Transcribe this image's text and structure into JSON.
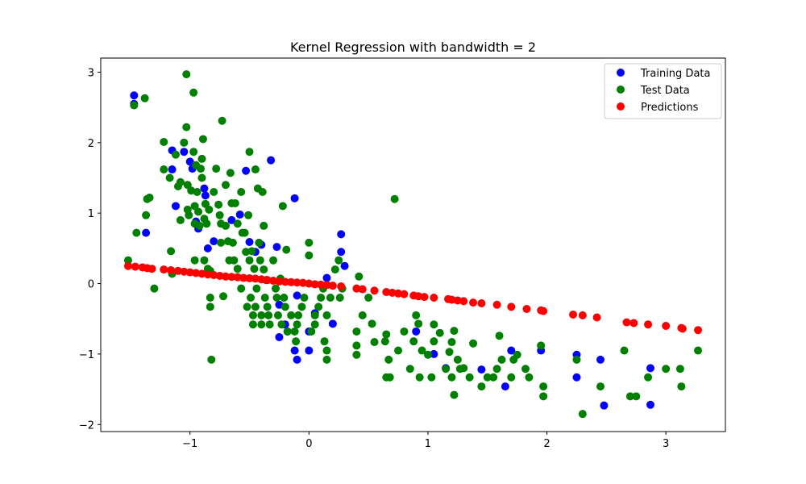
{
  "chart_data": {
    "type": "scatter",
    "title": "Kernel Regression with bandwidth = 2",
    "xlabel": "",
    "ylabel": "",
    "xlim": [
      -1.75,
      3.5
    ],
    "ylim": [
      -2.1,
      3.2
    ],
    "x_ticks": [
      -1,
      0,
      1,
      2,
      3
    ],
    "x_tick_labels": [
      "−1",
      "0",
      "1",
      "2",
      "3"
    ],
    "y_ticks": [
      -2,
      -1,
      0,
      1,
      2,
      3
    ],
    "y_tick_labels": [
      "−2",
      "−1",
      "0",
      "1",
      "2",
      "3"
    ],
    "grid": false,
    "legend_position": "top-right",
    "series": [
      {
        "name": "Training Data",
        "color": "#0000ff",
        "points": [
          [
            -1.47,
            2.67
          ],
          [
            -1.47,
            2.55
          ],
          [
            -1.37,
            0.72
          ],
          [
            -1.15,
            1.89
          ],
          [
            -1.15,
            1.62
          ],
          [
            -1.12,
            1.1
          ],
          [
            -1.05,
            1.87
          ],
          [
            -1.0,
            1.73
          ],
          [
            -0.98,
            1.63
          ],
          [
            -0.95,
            0.88
          ],
          [
            -0.93,
            0.78
          ],
          [
            -0.88,
            1.35
          ],
          [
            -0.87,
            1.25
          ],
          [
            -0.85,
            0.5
          ],
          [
            -0.8,
            0.6
          ],
          [
            -0.65,
            0.9
          ],
          [
            -0.58,
            0.98
          ],
          [
            -0.53,
            1.6
          ],
          [
            -0.5,
            0.59
          ],
          [
            -0.45,
            0.45
          ],
          [
            -0.4,
            0.55
          ],
          [
            -0.32,
            1.75
          ],
          [
            -0.27,
            0.52
          ],
          [
            -0.25,
            -0.3
          ],
          [
            -0.25,
            -0.76
          ],
          [
            -0.2,
            -0.58
          ],
          [
            -0.18,
            -0.68
          ],
          [
            -0.12,
            -0.95
          ],
          [
            -0.1,
            -1.08
          ],
          [
            -0.12,
            1.21
          ],
          [
            -0.1,
            -0.17
          ],
          [
            0.0,
            -0.95
          ],
          [
            0.0,
            -0.68
          ],
          [
            0.05,
            -0.42
          ],
          [
            0.15,
            0.08
          ],
          [
            0.2,
            -0.57
          ],
          [
            0.27,
            0.7
          ],
          [
            0.27,
            0.45
          ],
          [
            0.3,
            0.25
          ],
          [
            0.9,
            -0.68
          ],
          [
            1.05,
            -1.0
          ],
          [
            1.15,
            -1.2
          ],
          [
            1.45,
            -1.22
          ],
          [
            1.65,
            -1.46
          ],
          [
            1.7,
            -0.95
          ],
          [
            1.95,
            -0.95
          ],
          [
            2.25,
            -1.01
          ],
          [
            2.25,
            -1.33
          ],
          [
            2.45,
            -1.08
          ],
          [
            2.48,
            -1.73
          ],
          [
            2.87,
            -1.2
          ],
          [
            2.87,
            -1.72
          ]
        ]
      },
      {
        "name": "Test Data",
        "color": "#008000",
        "points": [
          [
            -1.52,
            0.33
          ],
          [
            -1.47,
            2.53
          ],
          [
            -1.45,
            0.72
          ],
          [
            -1.38,
            2.63
          ],
          [
            -1.37,
            0.97
          ],
          [
            -1.36,
            1.2
          ],
          [
            -1.34,
            1.22
          ],
          [
            -1.3,
            -0.07
          ],
          [
            -1.22,
            2.01
          ],
          [
            -1.22,
            1.62
          ],
          [
            -1.17,
            1.5
          ],
          [
            -1.16,
            0.46
          ],
          [
            -1.15,
            0.14
          ],
          [
            -1.12,
            1.83
          ],
          [
            -1.1,
            1.38
          ],
          [
            -1.08,
            1.44
          ],
          [
            -1.08,
            0.9
          ],
          [
            -1.05,
            2.0
          ],
          [
            -1.03,
            2.97
          ],
          [
            -1.03,
            2.22
          ],
          [
            -1.02,
            1.4
          ],
          [
            -1.02,
            1.05
          ],
          [
            -1.01,
            0.97
          ],
          [
            -0.99,
            1.32
          ],
          [
            -0.97,
            2.71
          ],
          [
            -0.97,
            1.87
          ],
          [
            -0.96,
            1.1
          ],
          [
            -0.96,
            0.85
          ],
          [
            -0.96,
            0.33
          ],
          [
            -0.95,
            1.68
          ],
          [
            -0.94,
            1.3
          ],
          [
            -0.93,
            1.02
          ],
          [
            -0.92,
            0.82
          ],
          [
            -0.91,
            1.63
          ],
          [
            -0.9,
            1.77
          ],
          [
            -0.9,
            1.5
          ],
          [
            -0.89,
            2.05
          ],
          [
            -0.88,
            0.92
          ],
          [
            -0.88,
            0.33
          ],
          [
            -0.87,
            1.13
          ],
          [
            -0.86,
            0.85
          ],
          [
            -0.85,
            0.21
          ],
          [
            -0.84,
            1.05
          ],
          [
            -0.83,
            0.18
          ],
          [
            -0.83,
            -0.2
          ],
          [
            -0.83,
            -0.33
          ],
          [
            -0.82,
            -1.08
          ],
          [
            -0.8,
            1.3
          ],
          [
            -0.78,
            1.63
          ],
          [
            -0.76,
            1.12
          ],
          [
            -0.75,
            0.97
          ],
          [
            -0.74,
            0.85
          ],
          [
            -0.74,
            0.58
          ],
          [
            -0.73,
            2.31
          ],
          [
            -0.72,
            -0.18
          ],
          [
            -0.7,
            1.4
          ],
          [
            -0.7,
            0.82
          ],
          [
            -0.68,
            0.6
          ],
          [
            -0.67,
            0.33
          ],
          [
            -0.66,
            1.57
          ],
          [
            -0.65,
            1.14
          ],
          [
            -0.64,
            0.58
          ],
          [
            -0.63,
            0.33
          ],
          [
            -0.62,
            1.14
          ],
          [
            -0.6,
            0.85
          ],
          [
            -0.6,
            0.21
          ],
          [
            -0.57,
            1.3
          ],
          [
            -0.57,
            -0.07
          ],
          [
            -0.56,
            0.72
          ],
          [
            -0.54,
            0.72
          ],
          [
            -0.53,
            0.45
          ],
          [
            -0.52,
            -0.33
          ],
          [
            -0.51,
            0.97
          ],
          [
            -0.5,
            1.87
          ],
          [
            -0.5,
            0.33
          ],
          [
            -0.49,
            -0.2
          ],
          [
            -0.48,
            0.46
          ],
          [
            -0.47,
            -0.45
          ],
          [
            -0.47,
            -0.58
          ],
          [
            -0.46,
            0.21
          ],
          [
            -0.45,
            1.62
          ],
          [
            -0.45,
            -0.33
          ],
          [
            -0.44,
            -0.07
          ],
          [
            -0.43,
            1.35
          ],
          [
            -0.42,
            0.58
          ],
          [
            -0.41,
            0.33
          ],
          [
            -0.4,
            -0.45
          ],
          [
            -0.4,
            -0.58
          ],
          [
            -0.39,
            1.3
          ],
          [
            -0.38,
            0.82
          ],
          [
            -0.38,
            0.2
          ],
          [
            -0.37,
            -0.2
          ],
          [
            -0.36,
            0.05
          ],
          [
            -0.35,
            -0.33
          ],
          [
            -0.34,
            -0.45
          ],
          [
            -0.33,
            -0.58
          ],
          [
            -0.3,
            0.33
          ],
          [
            -0.28,
            -0.07
          ],
          [
            -0.27,
            -0.2
          ],
          [
            -0.26,
            -0.45
          ],
          [
            -0.24,
            0.07
          ],
          [
            -0.23,
            -0.58
          ],
          [
            -0.22,
            1.1
          ],
          [
            -0.21,
            -0.2
          ],
          [
            -0.2,
            -0.33
          ],
          [
            -0.19,
            0.48
          ],
          [
            -0.18,
            -0.68
          ],
          [
            -0.15,
            -0.45
          ],
          [
            -0.12,
            -0.68
          ],
          [
            -0.11,
            -0.82
          ],
          [
            -0.1,
            -0.58
          ],
          [
            -0.09,
            -0.45
          ],
          [
            -0.06,
            -0.33
          ],
          [
            -0.04,
            -0.2
          ],
          [
            0.0,
            0.58
          ],
          [
            0.0,
            0.4
          ],
          [
            0.02,
            -0.68
          ],
          [
            0.05,
            -0.58
          ],
          [
            0.05,
            -0.45
          ],
          [
            0.08,
            -0.33
          ],
          [
            0.1,
            -0.2
          ],
          [
            0.12,
            -0.07
          ],
          [
            0.13,
            -0.82
          ],
          [
            0.15,
            -0.95
          ],
          [
            0.15,
            -1.08
          ],
          [
            0.15,
            -0.45
          ],
          [
            0.18,
            -0.2
          ],
          [
            0.22,
            0.2
          ],
          [
            0.25,
            0.33
          ],
          [
            0.26,
            -0.2
          ],
          [
            0.28,
            -0.07
          ],
          [
            0.4,
            -0.68
          ],
          [
            0.4,
            -0.88
          ],
          [
            0.4,
            -1.01
          ],
          [
            0.42,
            0.1
          ],
          [
            0.45,
            -0.45
          ],
          [
            0.5,
            -0.2
          ],
          [
            0.53,
            -0.57
          ],
          [
            0.55,
            -0.83
          ],
          [
            0.64,
            -0.82
          ],
          [
            0.65,
            -0.72
          ],
          [
            0.65,
            -1.33
          ],
          [
            0.67,
            -1.08
          ],
          [
            0.68,
            -1.33
          ],
          [
            0.72,
            1.2
          ],
          [
            0.75,
            -0.95
          ],
          [
            0.8,
            -0.68
          ],
          [
            0.85,
            -1.21
          ],
          [
            0.88,
            -0.82
          ],
          [
            0.9,
            -0.45
          ],
          [
            0.92,
            -0.57
          ],
          [
            0.93,
            -1.33
          ],
          [
            0.95,
            -0.95
          ],
          [
            1.0,
            -1.01
          ],
          [
            1.03,
            -1.33
          ],
          [
            1.05,
            -0.82
          ],
          [
            1.05,
            -0.58
          ],
          [
            1.1,
            -0.7
          ],
          [
            1.15,
            -1.21
          ],
          [
            1.18,
            -0.97
          ],
          [
            1.2,
            -1.33
          ],
          [
            1.22,
            -1.58
          ],
          [
            1.2,
            -0.83
          ],
          [
            1.22,
            -0.67
          ],
          [
            1.25,
            -1.08
          ],
          [
            1.27,
            -1.21
          ],
          [
            1.3,
            -1.2
          ],
          [
            1.35,
            -1.33
          ],
          [
            1.38,
            -0.85
          ],
          [
            1.45,
            -1.46
          ],
          [
            1.5,
            -1.33
          ],
          [
            1.55,
            -1.33
          ],
          [
            1.58,
            -1.21
          ],
          [
            1.6,
            -0.74
          ],
          [
            1.62,
            -1.08
          ],
          [
            1.7,
            -1.33
          ],
          [
            1.72,
            -1.08
          ],
          [
            1.75,
            -1.01
          ],
          [
            1.82,
            -1.21
          ],
          [
            1.85,
            -1.33
          ],
          [
            1.95,
            -0.88
          ],
          [
            1.97,
            -1.46
          ],
          [
            1.97,
            -1.6
          ],
          [
            2.25,
            -1.08
          ],
          [
            2.3,
            -1.85
          ],
          [
            2.45,
            -1.46
          ],
          [
            2.65,
            -0.95
          ],
          [
            2.7,
            -1.6
          ],
          [
            2.75,
            -1.6
          ],
          [
            2.85,
            -1.33
          ],
          [
            3.0,
            -1.21
          ],
          [
            3.12,
            -1.21
          ],
          [
            3.13,
            -1.46
          ],
          [
            3.27,
            -0.95
          ]
        ]
      },
      {
        "name": "Predictions",
        "color": "#ff0000",
        "points": [
          [
            -1.52,
            0.25
          ],
          [
            -1.46,
            0.24
          ],
          [
            -1.4,
            0.23
          ],
          [
            -1.36,
            0.22
          ],
          [
            -1.32,
            0.21
          ],
          [
            -1.22,
            0.2
          ],
          [
            -1.16,
            0.19
          ],
          [
            -1.1,
            0.18
          ],
          [
            -1.05,
            0.17
          ],
          [
            -1.0,
            0.16
          ],
          [
            -0.95,
            0.15
          ],
          [
            -0.9,
            0.14
          ],
          [
            -0.85,
            0.13
          ],
          [
            -0.8,
            0.12
          ],
          [
            -0.75,
            0.11
          ],
          [
            -0.7,
            0.1
          ],
          [
            -0.65,
            0.095
          ],
          [
            -0.6,
            0.09
          ],
          [
            -0.55,
            0.08
          ],
          [
            -0.5,
            0.075
          ],
          [
            -0.45,
            0.07
          ],
          [
            -0.4,
            0.06
          ],
          [
            -0.35,
            0.05
          ],
          [
            -0.3,
            0.04
          ],
          [
            -0.25,
            0.03
          ],
          [
            -0.2,
            0.025
          ],
          [
            -0.15,
            0.02
          ],
          [
            -0.1,
            0.015
          ],
          [
            -0.05,
            0.01
          ],
          [
            0.0,
            0.0
          ],
          [
            0.05,
            -0.01
          ],
          [
            0.1,
            -0.015
          ],
          [
            0.15,
            -0.02
          ],
          [
            0.2,
            -0.03
          ],
          [
            0.27,
            -0.04
          ],
          [
            0.4,
            -0.07
          ],
          [
            0.45,
            -0.08
          ],
          [
            0.55,
            -0.1
          ],
          [
            0.65,
            -0.12
          ],
          [
            0.7,
            -0.13
          ],
          [
            0.75,
            -0.14
          ],
          [
            0.8,
            -0.15
          ],
          [
            0.88,
            -0.17
          ],
          [
            0.92,
            -0.18
          ],
          [
            0.97,
            -0.19
          ],
          [
            1.05,
            -0.2
          ],
          [
            1.17,
            -0.22
          ],
          [
            1.2,
            -0.23
          ],
          [
            1.25,
            -0.24
          ],
          [
            1.3,
            -0.25
          ],
          [
            1.38,
            -0.27
          ],
          [
            1.45,
            -0.28
          ],
          [
            1.58,
            -0.3
          ],
          [
            1.7,
            -0.33
          ],
          [
            1.83,
            -0.36
          ],
          [
            1.95,
            -0.38
          ],
          [
            1.97,
            -0.39
          ],
          [
            2.22,
            -0.44
          ],
          [
            2.3,
            -0.45
          ],
          [
            2.42,
            -0.48
          ],
          [
            2.67,
            -0.55
          ],
          [
            2.73,
            -0.56
          ],
          [
            2.85,
            -0.58
          ],
          [
            3.0,
            -0.6
          ],
          [
            3.13,
            -0.63
          ],
          [
            3.14,
            -0.64
          ],
          [
            3.27,
            -0.66
          ]
        ]
      }
    ]
  }
}
